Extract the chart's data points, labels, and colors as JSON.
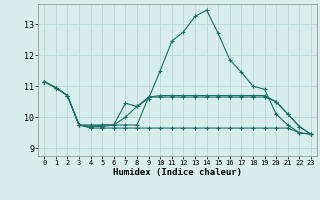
{
  "xlabel": "Humidex (Indice chaleur)",
  "background_color": "#d8eeed",
  "grid_color": "#b8d8d5",
  "line_color": "#1a7068",
  "x_ticks": [
    0,
    1,
    2,
    3,
    4,
    5,
    6,
    7,
    8,
    9,
    10,
    11,
    12,
    13,
    14,
    15,
    16,
    17,
    18,
    19,
    20,
    21,
    22,
    23
  ],
  "ylim": [
    8.75,
    13.65
  ],
  "yticks": [
    9,
    10,
    11,
    12,
    13
  ],
  "curve1_y": [
    11.15,
    10.95,
    10.7,
    9.75,
    9.7,
    9.75,
    9.75,
    10.45,
    10.35,
    10.6,
    11.5,
    12.45,
    12.75,
    13.25,
    13.45,
    12.7,
    11.85,
    11.45,
    11.0,
    10.9,
    10.1,
    9.75,
    9.5,
    9.45
  ],
  "curve2_y": [
    11.15,
    10.95,
    10.7,
    9.75,
    9.75,
    9.75,
    9.75,
    9.75,
    9.75,
    10.65,
    10.7,
    10.7,
    10.7,
    10.7,
    10.7,
    10.7,
    10.7,
    10.7,
    10.7,
    10.7,
    10.5,
    10.1,
    9.7,
    9.45
  ],
  "curve3_y": [
    11.15,
    10.95,
    10.7,
    9.75,
    9.7,
    9.7,
    9.75,
    10.0,
    10.35,
    10.65,
    10.65,
    10.65,
    10.65,
    10.65,
    10.65,
    10.65,
    10.65,
    10.65,
    10.65,
    10.65,
    10.5,
    10.1,
    9.7,
    9.45
  ],
  "curve4_y": [
    11.15,
    10.95,
    10.7,
    9.75,
    9.65,
    9.65,
    9.65,
    9.65,
    9.65,
    9.65,
    9.65,
    9.65,
    9.65,
    9.65,
    9.65,
    9.65,
    9.65,
    9.65,
    9.65,
    9.65,
    9.65,
    9.65,
    9.5,
    9.45
  ]
}
